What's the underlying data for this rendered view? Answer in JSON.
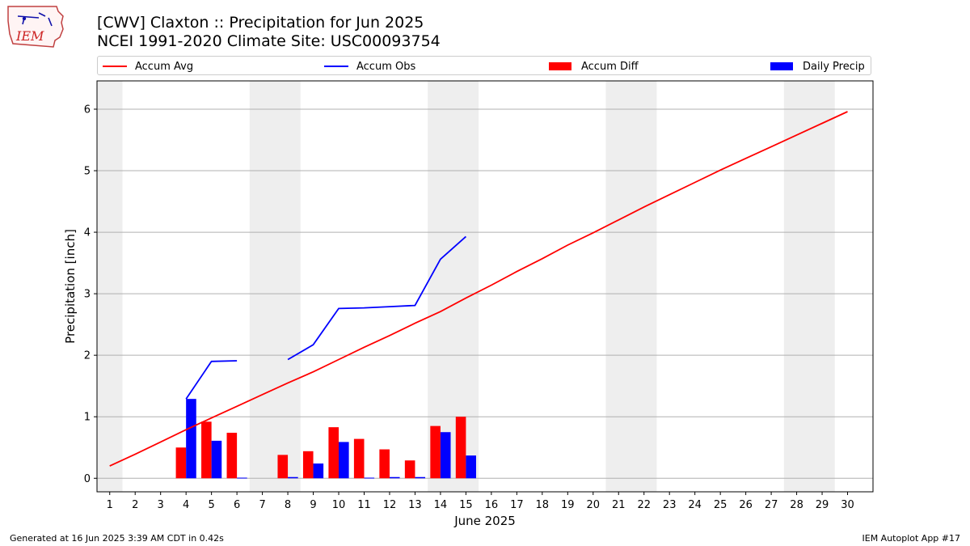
{
  "header": {
    "logo_text": "IEM",
    "title_line1": "[CWV] Claxton :: Precipitation for Jun 2025",
    "title_line2": "NCEI 1991-2020 Climate Site: USC00093754"
  },
  "legend": {
    "items": [
      {
        "label": "Accum Avg",
        "color": "#ff0000",
        "kind": "line"
      },
      {
        "label": "Accum Obs",
        "color": "#0000ff",
        "kind": "line"
      },
      {
        "label": "Accum Diff",
        "color": "#ff0000",
        "kind": "box"
      },
      {
        "label": "Daily Precip",
        "color": "#0000ff",
        "kind": "box"
      }
    ]
  },
  "footer": {
    "generated": "Generated at 16 Jun 2025 3:39 AM CDT in 0.42s",
    "app": "IEM Autoplot App #17"
  },
  "chart_data": {
    "type": "bar",
    "xlabel": "June 2025",
    "ylabel": "Precipitation [inch]",
    "xlim": [
      0.5,
      31
    ],
    "ylim": [
      -0.22,
      6.46
    ],
    "yticks": [
      0,
      1,
      2,
      3,
      4,
      5,
      6
    ],
    "grid": "horizontal",
    "legend_position": "top",
    "weekend_shading": [
      [
        0.5,
        1.5
      ],
      [
        6.5,
        8.5
      ],
      [
        13.5,
        15.5
      ],
      [
        20.5,
        22.5
      ],
      [
        27.5,
        29.5
      ]
    ],
    "shade_color": "#eeeeee",
    "days": [
      1,
      2,
      3,
      4,
      5,
      6,
      7,
      8,
      9,
      10,
      11,
      12,
      13,
      14,
      15,
      16,
      17,
      18,
      19,
      20,
      21,
      22,
      23,
      24,
      25,
      26,
      27,
      28,
      29,
      30
    ],
    "series": [
      {
        "name": "Accum Avg",
        "kind": "line",
        "color": "#ff0000",
        "x": [
          1,
          2,
          3,
          4,
          5,
          6,
          7,
          8,
          9,
          10,
          11,
          12,
          13,
          14,
          15,
          16,
          17,
          18,
          19,
          20,
          21,
          22,
          23,
          24,
          25,
          26,
          27,
          28,
          29,
          30
        ],
        "values": [
          0.2,
          0.39,
          0.59,
          0.79,
          0.98,
          1.17,
          1.36,
          1.55,
          1.73,
          1.93,
          2.13,
          2.32,
          2.52,
          2.71,
          2.93,
          3.14,
          3.36,
          3.57,
          3.79,
          3.99,
          4.2,
          4.41,
          4.61,
          4.81,
          5.01,
          5.2,
          5.39,
          5.58,
          5.77,
          5.96
        ]
      },
      {
        "name": "Accum Obs",
        "kind": "line",
        "color": "#0000ff",
        "x": [
          4,
          5,
          6,
          7,
          8,
          9,
          10,
          11,
          12,
          13,
          14,
          15
        ],
        "values": [
          1.29,
          1.9,
          1.91,
          null,
          1.93,
          2.17,
          2.76,
          2.77,
          2.79,
          2.81,
          3.56,
          3.93
        ]
      },
      {
        "name": "Accum Diff",
        "kind": "bar",
        "color": "#ff0000",
        "x": [
          4,
          5,
          6,
          8,
          9,
          10,
          11,
          12,
          13,
          14,
          15
        ],
        "values": [
          0.5,
          0.92,
          0.74,
          0.38,
          0.44,
          0.83,
          0.64,
          0.47,
          0.29,
          0.85,
          1.0
        ]
      },
      {
        "name": "Daily Precip",
        "kind": "bar",
        "color": "#0000ff",
        "x": [
          4,
          5,
          6,
          8,
          9,
          10,
          11,
          12,
          13,
          14,
          15
        ],
        "values": [
          1.29,
          0.61,
          0.01,
          0.02,
          0.24,
          0.59,
          0.01,
          0.02,
          0.02,
          0.75,
          0.37
        ]
      }
    ]
  }
}
